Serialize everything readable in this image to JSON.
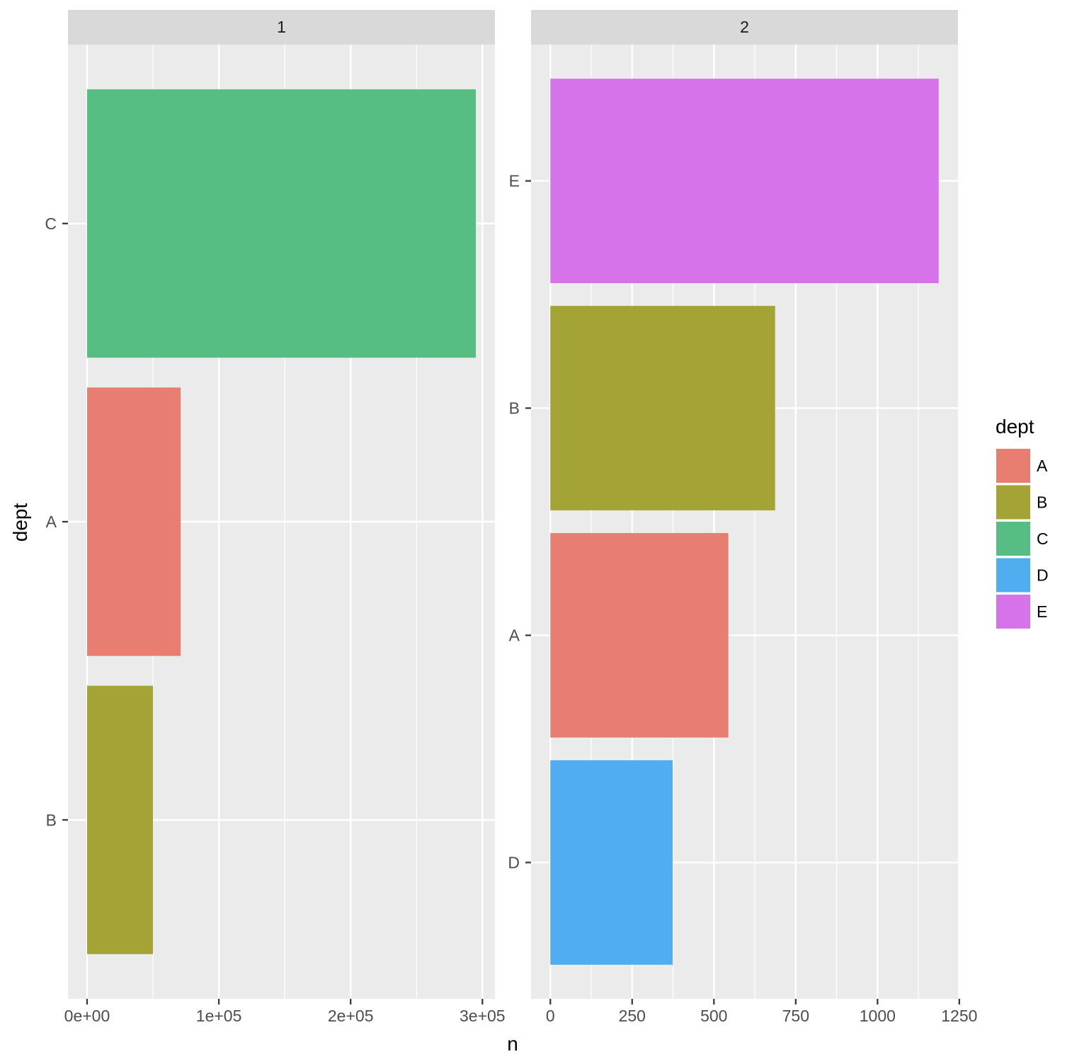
{
  "chart_data": {
    "type": "bar",
    "orientation": "horizontal",
    "xlabel": "n",
    "ylabel": "dept",
    "panel_background": "#ebebeb",
    "strip_background": "#d9d9d9",
    "colors": {
      "A": "#E87D72",
      "B": "#A3A435",
      "C": "#56BD83",
      "D": "#4FADF0",
      "E": "#D673EA"
    },
    "legend": {
      "title": "dept",
      "entries": [
        "A",
        "B",
        "C",
        "D",
        "E"
      ]
    },
    "facets": [
      {
        "label": "1",
        "categories": [
          "B",
          "A",
          "C"
        ],
        "values": [
          50000,
          71000,
          295000
        ],
        "xlim": [
          -14500,
          309500
        ],
        "xticks": [
          0,
          100000,
          200000,
          300000
        ],
        "xtick_labels": [
          "0e+00",
          "1e+05",
          "2e+05",
          "3e+05"
        ]
      },
      {
        "label": "2",
        "categories": [
          "D",
          "A",
          "B",
          "E"
        ],
        "values": [
          374,
          544,
          687,
          1187
        ],
        "xlim": [
          -59,
          1246
        ],
        "xticks": [
          0,
          250,
          500,
          750,
          1000,
          1250
        ],
        "xtick_labels": [
          "0",
          "250",
          "500",
          "750",
          "1000",
          "1250"
        ]
      }
    ]
  }
}
